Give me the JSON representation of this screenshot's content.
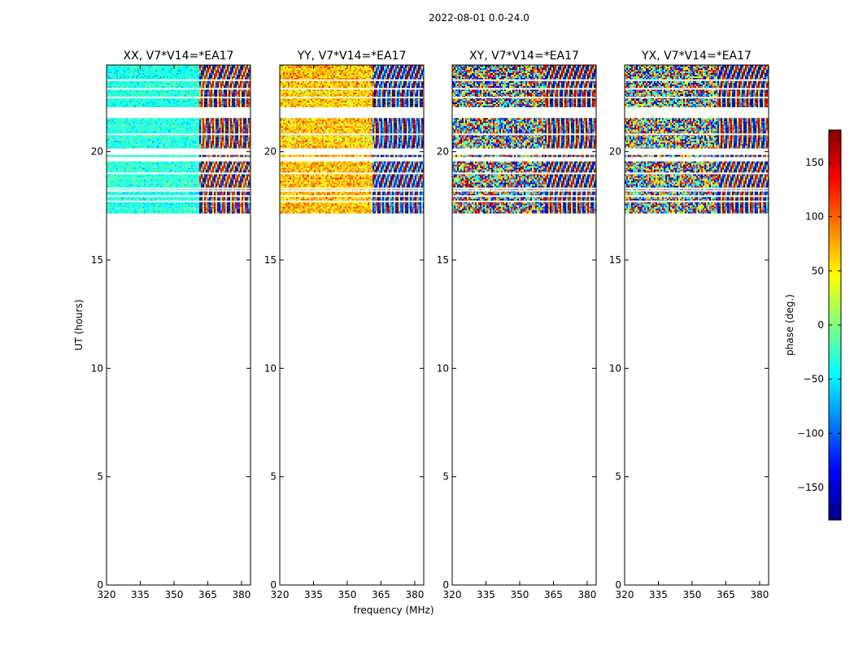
{
  "chart_data": {
    "type": "heatmap",
    "suptitle": "2022-08-01 0.0-24.0",
    "xlabel": "frequency (MHz)",
    "ylabel": "UT (hours)",
    "xlim": [
      320,
      384
    ],
    "ylim": [
      0,
      24
    ],
    "xticks": [
      320,
      335,
      350,
      365,
      380
    ],
    "yticks": [
      0,
      5,
      10,
      15,
      20
    ],
    "panels": [
      {
        "title": "XX, V7*V14=*EA17",
        "mean_phase_low_freq": -35,
        "mean_phase_high_freq": -20,
        "noise_deg": 15,
        "band_split_mhz": 360.5
      },
      {
        "title": "YY, V7*V14=*EA17",
        "mean_phase_low_freq": 65,
        "mean_phase_high_freq": 40,
        "noise_deg": 25,
        "band_split_mhz": 360.5
      },
      {
        "title": "XY, V7*V14=*EA17",
        "mean_phase_low_freq": 0,
        "mean_phase_high_freq": 0,
        "noise_deg": 180,
        "band_split_mhz": 360.5
      },
      {
        "title": "YX, V7*V14=*EA17",
        "mean_phase_low_freq": 10,
        "mean_phase_high_freq": 0,
        "noise_deg": 120,
        "band_split_mhz": 360.5
      }
    ],
    "data_ut_ranges_hours": [
      [
        17.15,
        19.55
      ],
      [
        19.75,
        19.85
      ],
      [
        20.15,
        21.55
      ],
      [
        22.05,
        24.0
      ]
    ],
    "gap_ut_rows_hours": [
      17.7,
      17.95,
      18.2,
      18.3,
      19.0,
      20.8,
      22.5,
      22.9,
      23.3
    ],
    "colorbar": {
      "label": "phase (deg.)",
      "range": [
        -180,
        180
      ],
      "ticks": [
        -150,
        -100,
        -50,
        0,
        50,
        100,
        150
      ],
      "tick_labels": [
        "−150",
        "−100",
        "−50",
        "0",
        "50",
        "100",
        "150"
      ],
      "colormap": "jet"
    }
  }
}
